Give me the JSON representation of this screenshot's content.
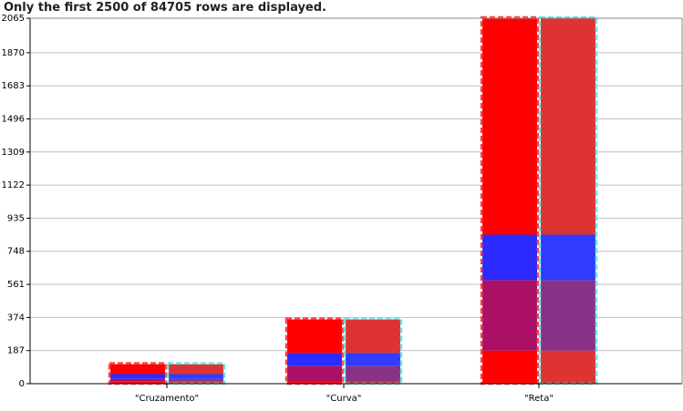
{
  "notice": "Only the first 2500 of 84705 rows are displayed.",
  "chart_data": {
    "type": "bar",
    "stacked": true,
    "bars_per_category": 2,
    "categories": [
      "\"Cruzamento\"",
      "\"Curva\"",
      "\"Reta\""
    ],
    "y_ticks": [
      0,
      187,
      374,
      561,
      748,
      935,
      1122,
      1309,
      1496,
      1683,
      1870,
      2065
    ],
    "ylim": [
      0,
      2065
    ],
    "grid": true,
    "bars": [
      {
        "segments": [
          {
            "color": "#ff0000",
            "values": [
              12,
              13,
              187
            ]
          },
          {
            "color": "#aa1166",
            "values": [
              15,
              86,
              398
            ]
          },
          {
            "color": "#2b2bff",
            "values": [
              27,
              74,
              257
            ]
          },
          {
            "color": "#ff0000",
            "values": [
              56,
              190,
              1223
            ]
          }
        ]
      },
      {
        "segments": [
          {
            "color": "#dd3333",
            "values": [
              12,
              13,
              187
            ]
          },
          {
            "color": "#883388",
            "values": [
              15,
              86,
              398
            ]
          },
          {
            "color": "#2f3bff",
            "values": [
              27,
              74,
              257
            ]
          },
          {
            "color": "#dd3333",
            "values": [
              56,
              190,
              1223
            ]
          }
        ]
      }
    ],
    "outline_colors": [
      "#ff4444",
      "#66e6e6"
    ]
  }
}
